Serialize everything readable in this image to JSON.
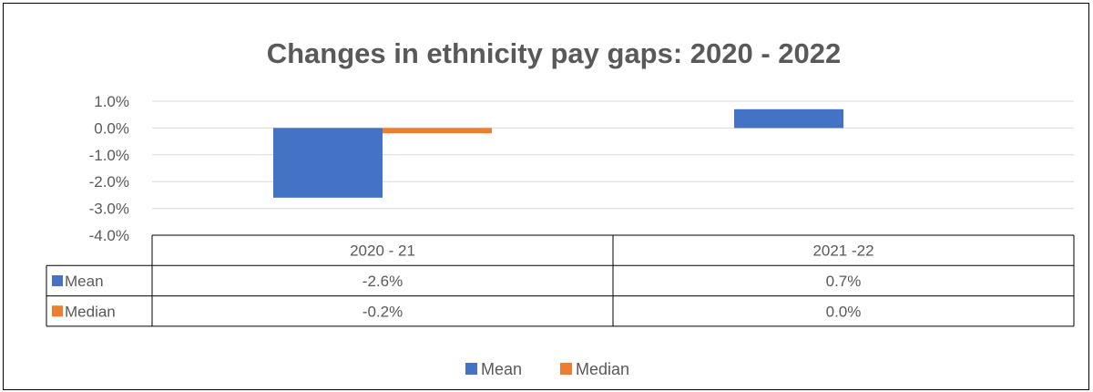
{
  "chart_data": {
    "type": "bar",
    "title": "Changes in ethnicity pay gaps: 2020 - 2022",
    "categories": [
      "2020  - 21",
      "2021 -22"
    ],
    "series": [
      {
        "name": "Mean",
        "values": [
          -2.6,
          0.7
        ],
        "labels": [
          "-2.6%",
          "0.7%"
        ],
        "color": "#4472C4"
      },
      {
        "name": "Median",
        "values": [
          -0.2,
          0.0
        ],
        "labels": [
          "-0.2%",
          "0.0%"
        ],
        "color": "#ED7D31"
      }
    ],
    "ylim": [
      -4.0,
      1.0
    ],
    "yticks": [
      "1.0%",
      "0.0%",
      "-1.0%",
      "-2.0%",
      "-3.0%",
      "-4.0%"
    ],
    "grid": true,
    "data_table": true,
    "legend": "bottom"
  }
}
